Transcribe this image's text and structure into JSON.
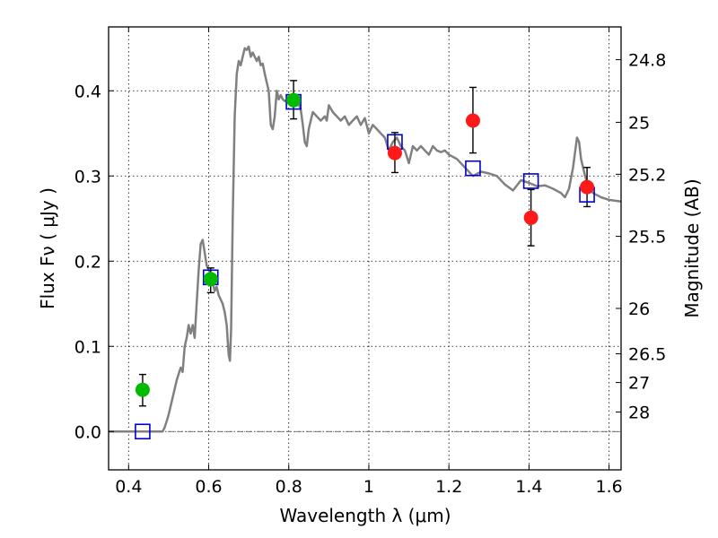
{
  "chart_data": {
    "type": "scatter",
    "xlabel": "Wavelength  λ (μm)",
    "ylabel": "Flux  Fν  ( μJy )",
    "y2label": "Magnitude (AB)",
    "xlim": [
      0.35,
      1.63
    ],
    "ylim": [
      -0.045,
      0.475
    ],
    "x_ticks": [
      0.4,
      0.6,
      0.8,
      1.0,
      1.2,
      1.4,
      1.6
    ],
    "x_tick_labels": [
      "0.4",
      "0.6",
      "0.8",
      "1",
      "1.2",
      "1.4",
      "1.6"
    ],
    "y_ticks": [
      0.0,
      0.1,
      0.2,
      0.3,
      0.4
    ],
    "y_tick_labels": [
      "0.0",
      "0.1",
      "0.2",
      "0.3",
      "0.4"
    ],
    "y2_ticks": [
      {
        "label": "24.8",
        "flux": 0.4365
      },
      {
        "label": "25",
        "flux": 0.363
      },
      {
        "label": "25.2",
        "flux": 0.302
      },
      {
        "label": "25.5",
        "flux": 0.2291
      },
      {
        "label": "26",
        "flux": 0.1445
      },
      {
        "label": "26.5",
        "flux": 0.0912
      },
      {
        "label": "27",
        "flux": 0.0575
      },
      {
        "label": "28",
        "flux": 0.0229
      }
    ],
    "grid": true,
    "zero_line": true,
    "colors": {
      "spectrum": "#808080",
      "green_points": "#00bb00",
      "red_points": "#ff1a1a",
      "model_squares": "#0000cc",
      "errorbar": "#000000"
    },
    "series": [
      {
        "kind": "line",
        "points": [
          [
            0.35,
            0.0
          ],
          [
            0.48,
            0.0
          ],
          [
            0.485,
            0.0
          ],
          [
            0.49,
            0.005
          ],
          [
            0.495,
            0.012
          ],
          [
            0.5,
            0.02
          ],
          [
            0.51,
            0.04
          ],
          [
            0.52,
            0.06
          ],
          [
            0.53,
            0.075
          ],
          [
            0.535,
            0.07
          ],
          [
            0.54,
            0.1
          ],
          [
            0.545,
            0.11
          ],
          [
            0.55,
            0.125
          ],
          [
            0.555,
            0.115
          ],
          [
            0.56,
            0.125
          ],
          [
            0.565,
            0.11
          ],
          [
            0.57,
            0.15
          ],
          [
            0.575,
            0.19
          ],
          [
            0.58,
            0.22
          ],
          [
            0.585,
            0.225
          ],
          [
            0.59,
            0.21
          ],
          [
            0.595,
            0.195
          ],
          [
            0.6,
            0.19
          ],
          [
            0.605,
            0.185
          ],
          [
            0.61,
            0.175
          ],
          [
            0.615,
            0.165
          ],
          [
            0.62,
            0.17
          ],
          [
            0.625,
            0.16
          ],
          [
            0.63,
            0.155
          ],
          [
            0.635,
            0.15
          ],
          [
            0.64,
            0.14
          ],
          [
            0.645,
            0.125
          ],
          [
            0.65,
            0.09
          ],
          [
            0.653,
            0.083
          ],
          [
            0.656,
            0.12
          ],
          [
            0.66,
            0.25
          ],
          [
            0.665,
            0.37
          ],
          [
            0.67,
            0.42
          ],
          [
            0.675,
            0.435
          ],
          [
            0.68,
            0.43
          ],
          [
            0.685,
            0.44
          ],
          [
            0.69,
            0.45
          ],
          [
            0.695,
            0.448
          ],
          [
            0.7,
            0.452
          ],
          [
            0.705,
            0.44
          ],
          [
            0.71,
            0.445
          ],
          [
            0.715,
            0.44
          ],
          [
            0.72,
            0.435
          ],
          [
            0.725,
            0.44
          ],
          [
            0.73,
            0.43
          ],
          [
            0.735,
            0.432
          ],
          [
            0.74,
            0.42
          ],
          [
            0.745,
            0.41
          ],
          [
            0.75,
            0.4
          ],
          [
            0.755,
            0.36
          ],
          [
            0.76,
            0.355
          ],
          [
            0.765,
            0.37
          ],
          [
            0.77,
            0.4
          ],
          [
            0.775,
            0.39
          ],
          [
            0.78,
            0.395
          ],
          [
            0.785,
            0.39
          ],
          [
            0.79,
            0.388
          ],
          [
            0.8,
            0.39
          ],
          [
            0.81,
            0.392
          ],
          [
            0.82,
            0.39
          ],
          [
            0.83,
            0.378
          ],
          [
            0.835,
            0.36
          ],
          [
            0.84,
            0.34
          ],
          [
            0.845,
            0.335
          ],
          [
            0.85,
            0.355
          ],
          [
            0.86,
            0.375
          ],
          [
            0.87,
            0.37
          ],
          [
            0.88,
            0.365
          ],
          [
            0.89,
            0.37
          ],
          [
            0.895,
            0.365
          ],
          [
            0.9,
            0.383
          ],
          [
            0.91,
            0.375
          ],
          [
            0.92,
            0.37
          ],
          [
            0.93,
            0.365
          ],
          [
            0.94,
            0.37
          ],
          [
            0.95,
            0.36
          ],
          [
            0.96,
            0.365
          ],
          [
            0.97,
            0.37
          ],
          [
            0.98,
            0.36
          ],
          [
            0.99,
            0.368
          ],
          [
            1.0,
            0.35
          ],
          [
            1.01,
            0.36
          ],
          [
            1.02,
            0.355
          ],
          [
            1.03,
            0.35
          ],
          [
            1.04,
            0.345
          ],
          [
            1.05,
            0.33
          ],
          [
            1.06,
            0.34
          ],
          [
            1.07,
            0.345
          ],
          [
            1.08,
            0.335
          ],
          [
            1.09,
            0.33
          ],
          [
            1.1,
            0.315
          ],
          [
            1.11,
            0.335
          ],
          [
            1.12,
            0.33
          ],
          [
            1.13,
            0.335
          ],
          [
            1.14,
            0.33
          ],
          [
            1.15,
            0.325
          ],
          [
            1.16,
            0.335
          ],
          [
            1.17,
            0.33
          ],
          [
            1.18,
            0.328
          ],
          [
            1.19,
            0.33
          ],
          [
            1.2,
            0.325
          ],
          [
            1.22,
            0.32
          ],
          [
            1.24,
            0.31
          ],
          [
            1.26,
            0.3
          ],
          [
            1.28,
            0.305
          ],
          [
            1.3,
            0.303
          ],
          [
            1.32,
            0.3
          ],
          [
            1.34,
            0.29
          ],
          [
            1.36,
            0.283
          ],
          [
            1.38,
            0.295
          ],
          [
            1.4,
            0.292
          ],
          [
            1.42,
            0.288
          ],
          [
            1.44,
            0.289
          ],
          [
            1.46,
            0.285
          ],
          [
            1.48,
            0.28
          ],
          [
            1.49,
            0.275
          ],
          [
            1.5,
            0.285
          ],
          [
            1.51,
            0.31
          ],
          [
            1.52,
            0.345
          ],
          [
            1.525,
            0.34
          ],
          [
            1.53,
            0.32
          ],
          [
            1.54,
            0.3
          ],
          [
            1.55,
            0.285
          ],
          [
            1.56,
            0.28
          ],
          [
            1.58,
            0.275
          ],
          [
            1.6,
            0.272
          ],
          [
            1.63,
            0.27
          ]
        ]
      },
      {
        "kind": "points",
        "marker": "circle-green",
        "points": [
          {
            "x": 0.435,
            "y": 0.049,
            "yerr_lo": 0.019,
            "yerr_hi": 0.018
          },
          {
            "x": 0.605,
            "y": 0.179,
            "yerr_lo": 0.016,
            "yerr_hi": 0.013
          },
          {
            "x": 0.812,
            "y": 0.389,
            "yerr_lo": 0.022,
            "yerr_hi": 0.023
          }
        ]
      },
      {
        "kind": "points",
        "marker": "circle-red",
        "points": [
          {
            "x": 1.065,
            "y": 0.327,
            "yerr_lo": 0.023,
            "yerr_hi": 0.024
          },
          {
            "x": 1.26,
            "y": 0.365,
            "yerr_lo": 0.038,
            "yerr_hi": 0.039
          },
          {
            "x": 1.405,
            "y": 0.251,
            "yerr_lo": 0.033,
            "yerr_hi": 0.033
          },
          {
            "x": 1.545,
            "y": 0.287,
            "yerr_lo": 0.023,
            "yerr_hi": 0.023
          }
        ]
      },
      {
        "kind": "points",
        "marker": "square-blue",
        "points": [
          {
            "x": 0.435,
            "y": 0.0
          },
          {
            "x": 0.605,
            "y": 0.181
          },
          {
            "x": 0.812,
            "y": 0.387
          },
          {
            "x": 1.065,
            "y": 0.34
          },
          {
            "x": 1.26,
            "y": 0.309
          },
          {
            "x": 1.405,
            "y": 0.294
          },
          {
            "x": 1.545,
            "y": 0.278
          }
        ]
      }
    ]
  }
}
